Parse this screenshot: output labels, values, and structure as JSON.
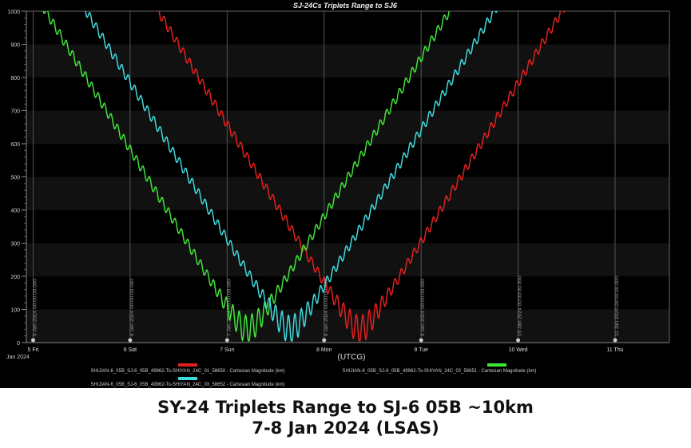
{
  "chart_data": {
    "type": "line",
    "title": "SJ-24Cs Triplets Range to SJ6",
    "xlabel": "(UTCG)",
    "x_epoch_label": "Jan 2024",
    "ylabel": "",
    "ylim": [
      0,
      1000
    ],
    "xlim_days": [
      4.93,
      11.56
    ],
    "yticks": [
      0,
      100,
      200,
      300,
      400,
      500,
      600,
      700,
      800,
      900,
      1000
    ],
    "xticks": [
      {
        "day": 5,
        "label": "5 Fri",
        "marker": "5 Jan 2024 00:00:00.000"
      },
      {
        "day": 6,
        "label": "6 Sat",
        "marker": "6 Jan 2024 00:00:00.000"
      },
      {
        "day": 7,
        "label": "7 Sun",
        "marker": "7 Jan 2024 00:00:00.000"
      },
      {
        "day": 8,
        "label": "8 Mon",
        "marker": "8 Jan 2024 00:00:00.000"
      },
      {
        "day": 9,
        "label": "9 Tue",
        "marker": "9 Jan 2024 00:00:00.000"
      },
      {
        "day": 10,
        "label": "10 Wed",
        "marker": "10 Jan 2024 00:00:00.000"
      },
      {
        "day": 11,
        "label": "11 Thu",
        "marker": "11 Jan 2024 00:00:00.000"
      }
    ],
    "grid": true,
    "legend_placement": "bottom",
    "series": [
      {
        "name": "SHIJIAN-6_05B_SJ-6_05B_49962-To-SHIYAN_24C_01_58650 - Cartesian Magnitude (km)",
        "color": "#e3201f",
        "closest_approach_day": 8.37,
        "min_range_km": 40,
        "slope_km_per_day": 480,
        "oscillation_km": 14,
        "oscillation_period_days": 0.066
      },
      {
        "name": "SHIJIAN-6_05B_SJ-6_05B_49962-To-SHIYAN_24C_02_58651 - Cartesian Magnitude (km)",
        "color": "#3fe43a",
        "closest_approach_day": 7.21,
        "min_range_km": 40,
        "slope_km_per_day": 480,
        "oscillation_km": 14,
        "oscillation_period_days": 0.066
      },
      {
        "name": "SHIJIAN-6_05B_SJ-6_05B_49962-To-SHIYAN_24C_03_58652 - Cartesian Magnitude (km)",
        "color": "#3fd9dd",
        "closest_approach_day": 7.65,
        "min_range_km": 40,
        "slope_km_per_day": 475,
        "oscillation_km": 14,
        "oscillation_period_days": 0.066
      }
    ]
  },
  "caption": {
    "line1": "SY-24 Triplets Range to SJ-6 05B ~10km",
    "line2": "7-8 Jan 2024 (LSAS)"
  }
}
